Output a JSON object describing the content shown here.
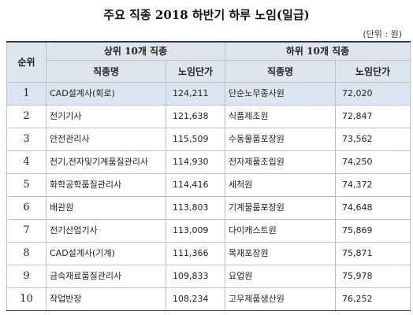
{
  "title": "주요 직종 2018 하반기 하루 노임(일급)",
  "unit": "(단위 : 원)",
  "table": {
    "rank_header": "순위",
    "group_headers": [
      "상위 10개 직종",
      "하위 10개 직종"
    ],
    "columns": [
      "직종명",
      "노임단가",
      "직종명",
      "노임단가"
    ],
    "rows": [
      [
        "1",
        "CAD설계사(회로)",
        "124,211",
        "단순노무종사원",
        "72,020"
      ],
      [
        "2",
        "전기기사",
        "121,638",
        "식품제조원",
        "72,847"
      ],
      [
        "3",
        "안전관리사",
        "115,509",
        "수동물품포장원",
        "73,562"
      ],
      [
        "4",
        "전기,전자및기계품질관리사",
        "114,930",
        "전자제품조립원",
        "74,250"
      ],
      [
        "5",
        "화학공학품질관리사",
        "114,416",
        "세척원",
        "74,372"
      ],
      [
        "6",
        "배관원",
        "113,803",
        "기계물품포장원",
        "74,648"
      ],
      [
        "7",
        "전기산업기사",
        "113,009",
        "다이캐스트원",
        "75,869"
      ],
      [
        "8",
        "CAD설계사(기계)",
        "111,366",
        "목재포장원",
        "75,871"
      ],
      [
        "9",
        "금속재료품질관리사",
        "109,833",
        "요업원",
        "75,978"
      ],
      [
        "10",
        "작업반장",
        "108,234",
        "고무제품생산원",
        "76,252"
      ]
    ]
  }
}
